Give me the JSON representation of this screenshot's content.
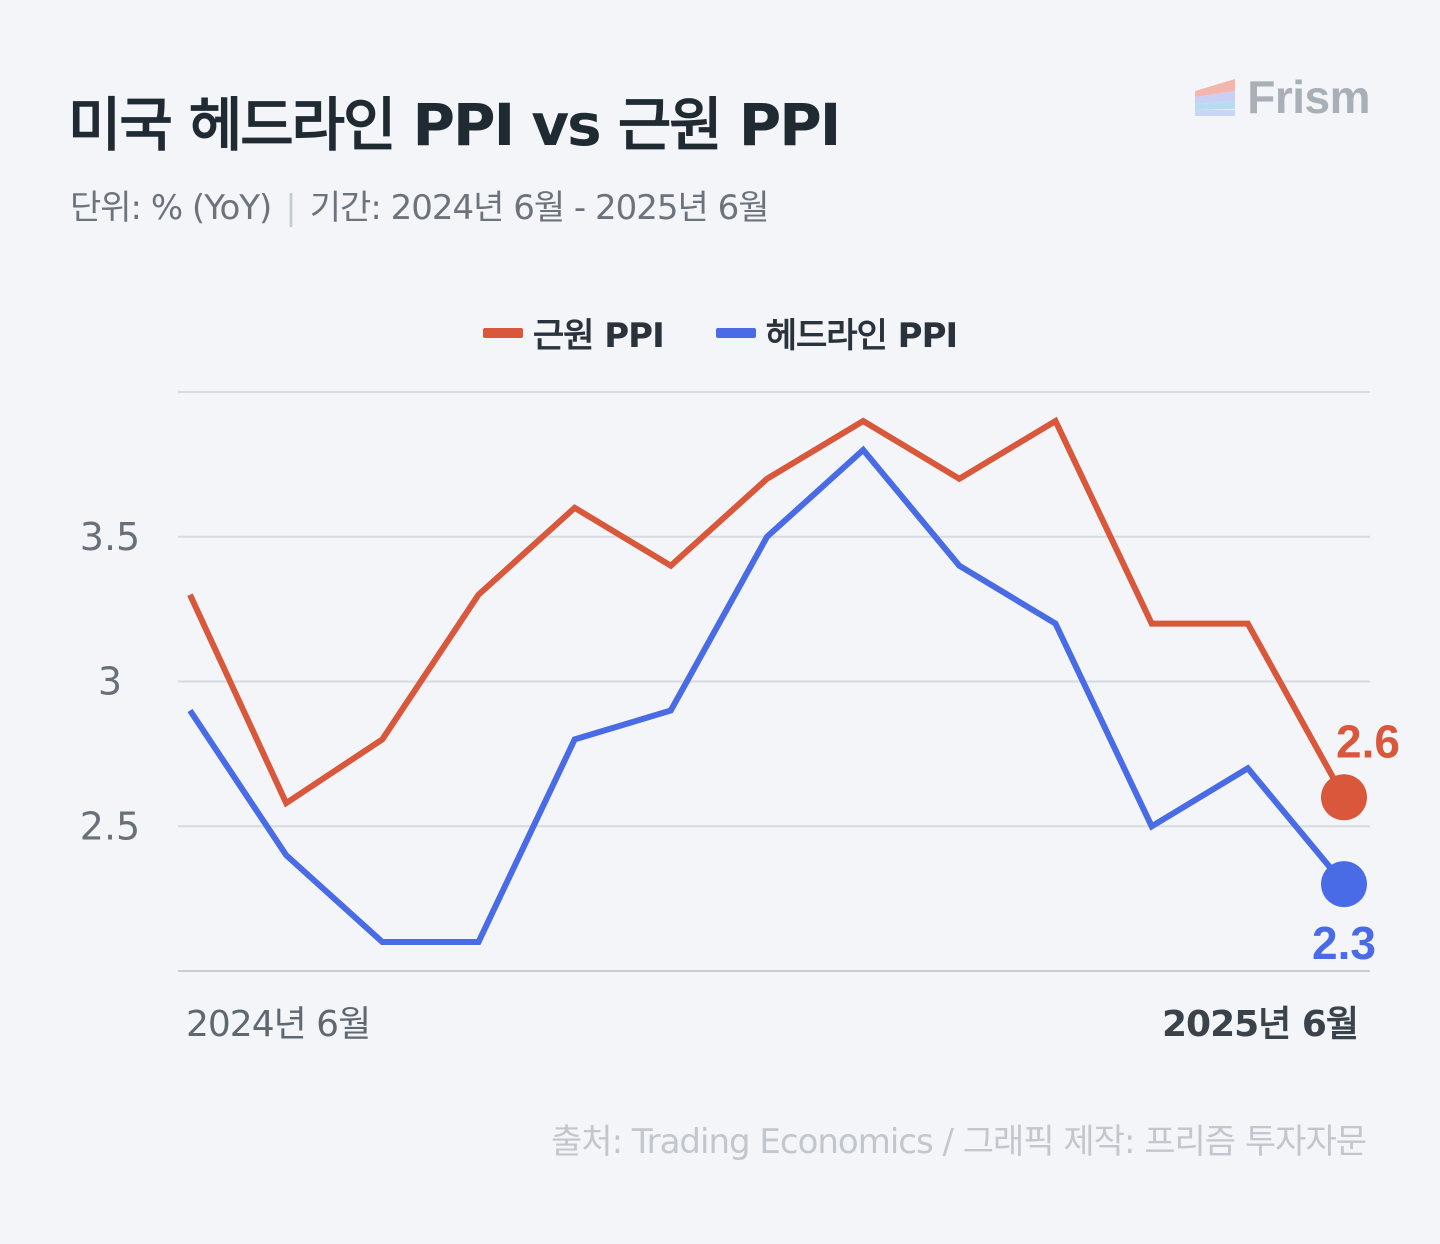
{
  "title": "미국 헤드라인 PPI vs 근원 PPI",
  "subtitle": {
    "unit": "단위: % (YoY)",
    "period": "기간: 2024년 6월 - 2025년 6월"
  },
  "brand": {
    "name": "Frism"
  },
  "source": "출처: Trading Economics  / 그래픽 제작: 프리즘 투자자문",
  "chart_data": {
    "type": "line",
    "x": [
      "2024-06",
      "2024-07",
      "2024-08",
      "2024-09",
      "2024-10",
      "2024-11",
      "2024-12",
      "2025-01",
      "2025-02",
      "2025-03",
      "2025-04",
      "2025-05",
      "2025-06"
    ],
    "x_tick_labels": {
      "first": "2024년 6월",
      "last": "2025년 6월"
    },
    "y_ticks": [
      "2.5",
      "3",
      "3.5"
    ],
    "ylim": [
      2.0,
      4.0
    ],
    "grid": true,
    "legend_position": "top-center",
    "series": [
      {
        "name": "근원 PPI",
        "color": "#d9573a",
        "values": [
          3.3,
          2.58,
          2.8,
          3.3,
          3.6,
          3.4,
          3.7,
          3.9,
          3.7,
          3.9,
          3.2,
          3.2,
          2.6
        ],
        "end_label": "2.6"
      },
      {
        "name": "헤드라인 PPI",
        "color": "#4a6be6",
        "values": [
          2.9,
          2.4,
          2.1,
          2.1,
          2.8,
          2.9,
          3.5,
          3.8,
          3.4,
          3.2,
          2.5,
          2.7,
          2.3
        ],
        "end_label": "2.3"
      }
    ]
  }
}
